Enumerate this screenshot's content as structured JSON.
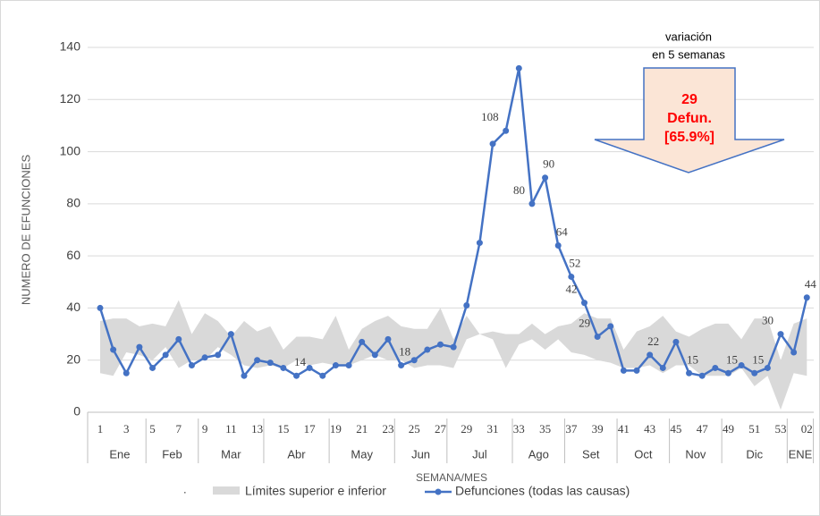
{
  "chart_data": {
    "type": "line",
    "ylabel": "NUMERO DE EFUNCIONES",
    "xlabel": "SEMANA/MES",
    "categories": [
      "1",
      null,
      "3",
      null,
      "5",
      null,
      "7",
      null,
      "9",
      null,
      "11",
      null,
      "13",
      null,
      "15",
      null,
      "17",
      null,
      "19",
      null,
      "21",
      null,
      "23",
      null,
      "25",
      null,
      "27",
      null,
      "29",
      null,
      "31",
      null,
      "33",
      null,
      "35",
      null,
      "37",
      null,
      "39",
      null,
      "41",
      null,
      "43",
      null,
      "45",
      null,
      "47",
      null,
      "49",
      null,
      "51",
      null,
      "53",
      null,
      "02"
    ],
    "month_groups": [
      {
        "label": "Ene",
        "count": 4
      },
      {
        "label": "Feb",
        "count": 4
      },
      {
        "label": "Mar",
        "count": 5
      },
      {
        "label": "Abr",
        "count": 5
      },
      {
        "label": "May",
        "count": 5
      },
      {
        "label": "Jun",
        "count": 4
      },
      {
        "label": "Jul",
        "count": 5
      },
      {
        "label": "Ago",
        "count": 4
      },
      {
        "label": "Set",
        "count": 4
      },
      {
        "label": "Oct",
        "count": 4
      },
      {
        "label": "Nov",
        "count": 4
      },
      {
        "label": "Dic",
        "count": 5
      },
      {
        "label": "ENE",
        "count": 2
      }
    ],
    "legend_prefix": ".",
    "series": [
      {
        "name": "Límites superior e inferior",
        "color": "#d9d9d9",
        "upper": [
          35,
          36,
          36,
          33,
          34,
          33,
          43,
          30,
          38,
          35,
          29,
          35,
          31,
          33,
          24,
          29,
          29,
          28,
          37,
          24,
          32,
          35,
          37,
          33,
          32,
          32,
          40,
          28,
          37,
          30,
          31,
          30,
          30,
          34,
          30,
          33,
          34,
          38,
          36,
          36,
          24,
          31,
          33,
          37,
          31,
          29,
          32,
          34,
          34,
          28,
          36,
          36,
          20,
          34,
          36
        ],
        "lower": [
          15,
          14,
          23,
          22,
          20,
          25,
          17,
          20,
          20,
          25,
          22,
          18,
          17,
          18,
          17,
          20,
          18,
          19,
          18,
          18,
          20,
          22,
          20,
          20,
          17,
          18,
          18,
          17,
          28,
          30,
          28,
          17,
          26,
          28,
          24,
          28,
          23,
          22,
          20,
          19,
          17,
          17,
          18,
          15,
          18,
          18,
          14,
          14,
          14,
          17,
          10,
          14,
          1,
          15,
          14
        ]
      },
      {
        "name": "Defunciones (todas las causas)",
        "color": "#4472c4",
        "values": [
          40,
          24,
          15,
          25,
          17,
          22,
          28,
          18,
          21,
          22,
          30,
          14,
          20,
          19,
          17,
          14,
          17,
          14,
          18,
          18,
          27,
          22,
          28,
          18,
          20,
          24,
          26,
          25,
          41,
          65,
          103,
          108,
          132,
          80,
          90,
          64,
          52,
          42,
          29,
          33,
          16,
          16,
          22,
          17,
          27,
          15,
          14,
          17,
          15,
          18,
          15,
          17,
          30,
          23,
          44
        ],
        "data_labels_at": [
          15,
          23,
          31,
          33,
          34,
          35,
          36,
          37,
          38,
          42,
          45,
          48,
          50,
          52,
          54
        ]
      }
    ],
    "ylim": [
      0,
      140
    ],
    "yticks": [
      0,
      20,
      40,
      60,
      80,
      100,
      120,
      140
    ],
    "grid": true,
    "annotation": {
      "title": [
        "variación",
        "en 5 semanas"
      ],
      "arrow_text": [
        "29",
        "Defun.",
        "[65.9%]"
      ],
      "color": "#ff0000",
      "fill": "#fbe5d6"
    }
  }
}
